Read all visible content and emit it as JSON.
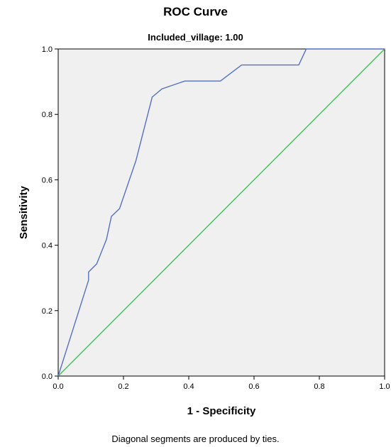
{
  "chart_data": {
    "type": "line",
    "title": "ROC Curve",
    "subtitle": "Included_village: 1.00",
    "xlabel": "1 - Specificity",
    "ylabel": "Sensitivity",
    "xlim": [
      0,
      1
    ],
    "ylim": [
      0,
      1
    ],
    "x_ticks": [
      "0.0",
      "0.2",
      "0.4",
      "0.6",
      "0.8",
      "1.0"
    ],
    "y_ticks": [
      "0.0",
      "0.2",
      "0.4",
      "0.6",
      "0.8",
      "1.0"
    ],
    "grid": false,
    "footnote": "Diagonal segments are produced by ties.",
    "series": [
      {
        "color": "#5470c6",
        "x": [
          0.0,
          0.093,
          0.093,
          0.118,
          0.148,
          0.163,
          0.188,
          0.238,
          0.288,
          0.318,
          0.388,
          0.497,
          0.562,
          0.737,
          0.76,
          1.0
        ],
        "y": [
          0.0,
          0.293,
          0.318,
          0.343,
          0.418,
          0.488,
          0.512,
          0.658,
          0.853,
          0.878,
          0.902,
          0.902,
          0.951,
          0.951,
          1.0,
          1.0
        ]
      },
      {
        "color": "#3cc453",
        "x": [
          0,
          1
        ],
        "y": [
          0,
          1
        ]
      }
    ]
  }
}
